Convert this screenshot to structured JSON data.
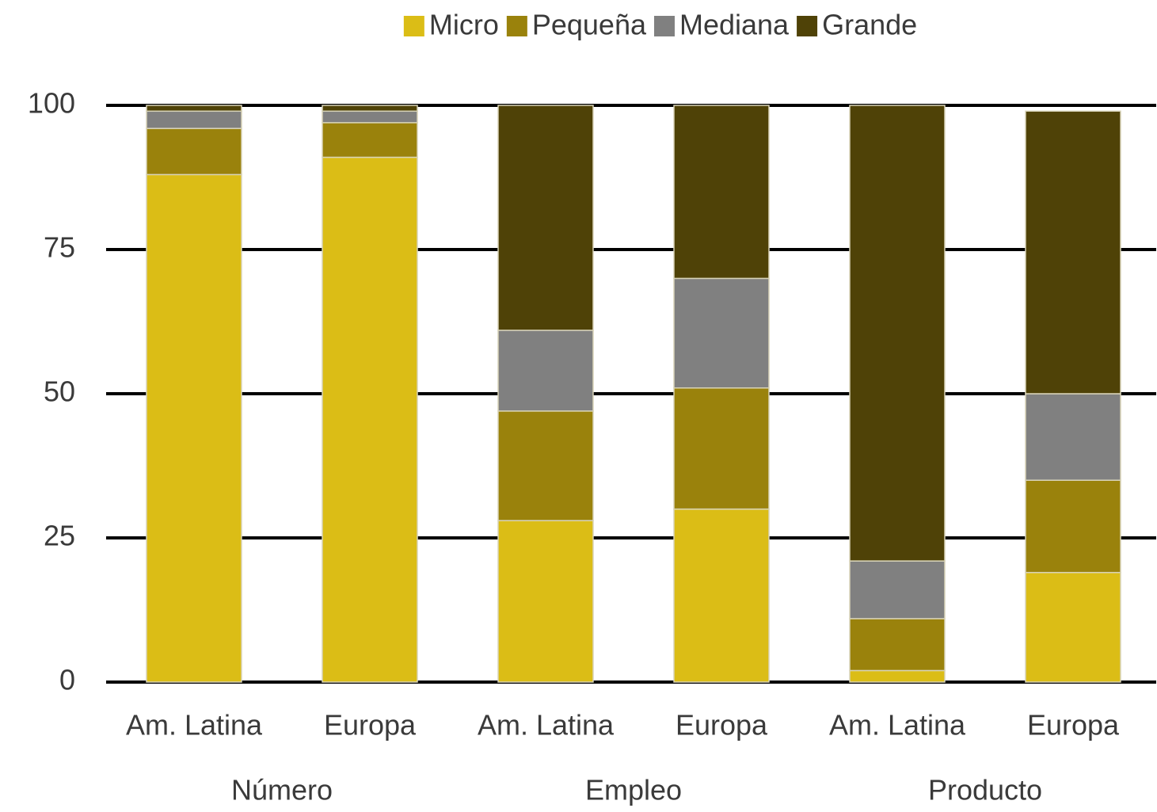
{
  "chart_data": {
    "type": "stacked_bar",
    "categories": [
      "Am. Latina",
      "Europa",
      "Am. Latina",
      "Europa",
      "Am. Latina",
      "Europa"
    ],
    "groups": [
      "Número",
      "Empleo",
      "Producto"
    ],
    "series": [
      {
        "name": "Micro",
        "color": "#dbbd16",
        "values": [
          88,
          91,
          28,
          30,
          2,
          19
        ]
      },
      {
        "name": "Pequeña",
        "color": "#9a820c",
        "values": [
          8,
          6,
          19,
          21,
          9,
          16
        ]
      },
      {
        "name": "Mediana",
        "color": "#808080",
        "values": [
          3,
          2,
          14,
          19,
          10,
          15
        ]
      },
      {
        "name": "Grande",
        "color": "#4f4207",
        "values": [
          1,
          1,
          39,
          30,
          79,
          49
        ]
      }
    ],
    "ylim": [
      0,
      100
    ],
    "yticks": [
      0,
      25,
      50,
      75,
      100
    ],
    "grid": true,
    "legend": "top"
  }
}
